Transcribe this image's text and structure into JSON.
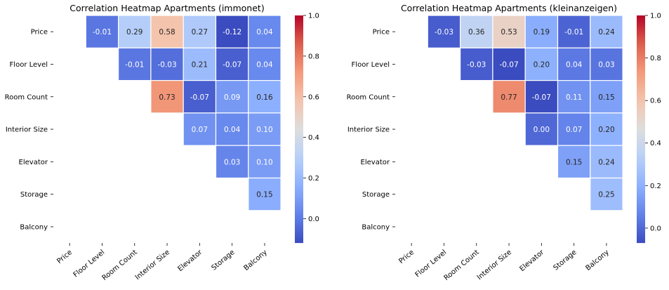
{
  "chart_data": [
    {
      "type": "heatmap",
      "title": "Correlation Heatmap Apartments (immonet)",
      "row_labels": [
        "Price",
        "Floor Level",
        "Room Count",
        "Interior Size",
        "Elevator",
        "Storage",
        "Balcony"
      ],
      "col_labels": [
        "Price",
        "Floor Level",
        "Room Count",
        "Interior Size",
        "Elevator",
        "Storage",
        "Balcony"
      ],
      "values": [
        [
          null,
          -0.01,
          0.29,
          0.58,
          0.27,
          -0.12,
          0.04
        ],
        [
          null,
          null,
          -0.01,
          -0.03,
          0.21,
          -0.07,
          0.04
        ],
        [
          null,
          null,
          null,
          0.73,
          -0.07,
          0.09,
          0.16
        ],
        [
          null,
          null,
          null,
          null,
          0.07,
          0.04,
          0.1
        ],
        [
          null,
          null,
          null,
          null,
          null,
          0.03,
          0.1
        ],
        [
          null,
          null,
          null,
          null,
          null,
          null,
          0.15
        ],
        [
          null,
          null,
          null,
          null,
          null,
          null,
          null
        ]
      ],
      "value_labels": [
        [
          "",
          "-0.01",
          "0.29",
          "0.58",
          "0.27",
          "-0.12",
          "0.04"
        ],
        [
          "",
          "",
          "-0.01",
          "-0.03",
          "0.21",
          "-0.07",
          "0.04"
        ],
        [
          "",
          "",
          "",
          "0.73",
          "-0.07",
          "0.09",
          "0.16"
        ],
        [
          "",
          "",
          "",
          "",
          "0.07",
          "0.04",
          "0.10"
        ],
        [
          "",
          "",
          "",
          "",
          "",
          "0.03",
          "0.10"
        ],
        [
          "",
          "",
          "",
          "",
          "",
          "",
          "0.15"
        ],
        [
          "",
          "",
          "",
          "",
          "",
          "",
          ""
        ]
      ],
      "colormap": "coolwarm",
      "colorbar": {
        "vmin": -0.12,
        "vmax": 1.0,
        "ticks": [
          0.0,
          0.2,
          0.4,
          0.6,
          0.8,
          1.0
        ],
        "tick_labels": [
          "0.0",
          "0.2",
          "0.4",
          "0.6",
          "0.8",
          "1.0"
        ]
      }
    },
    {
      "type": "heatmap",
      "title": "Correlation Heatmap Apartments (kleinanzeigen)",
      "row_labels": [
        "Price",
        "Floor Level",
        "Room Count",
        "Interior Size",
        "Elevator",
        "Storage",
        "Balcony"
      ],
      "col_labels": [
        "Price",
        "Floor Level",
        "Room Count",
        "Interior Size",
        "Elevator",
        "Storage",
        "Balcony"
      ],
      "values": [
        [
          null,
          -0.03,
          0.36,
          0.53,
          0.19,
          -0.01,
          0.24
        ],
        [
          null,
          null,
          -0.03,
          -0.07,
          0.2,
          0.04,
          0.03
        ],
        [
          null,
          null,
          null,
          0.77,
          -0.07,
          0.11,
          0.15
        ],
        [
          null,
          null,
          null,
          null,
          0.0,
          0.07,
          0.2
        ],
        [
          null,
          null,
          null,
          null,
          null,
          0.15,
          0.24
        ],
        [
          null,
          null,
          null,
          null,
          null,
          null,
          0.25
        ],
        [
          null,
          null,
          null,
          null,
          null,
          null,
          null
        ]
      ],
      "value_labels": [
        [
          "",
          "-0.03",
          "0.36",
          "0.53",
          "0.19",
          "-0.01",
          "0.24"
        ],
        [
          "",
          "",
          "-0.03",
          "-0.07",
          "0.20",
          "0.04",
          "0.03"
        ],
        [
          "",
          "",
          "",
          "0.77",
          "-0.07",
          "0.11",
          "0.15"
        ],
        [
          "",
          "",
          "",
          "",
          "0.00",
          "0.07",
          "0.20"
        ],
        [
          "",
          "",
          "",
          "",
          "",
          "0.15",
          "0.24"
        ],
        [
          "",
          "",
          "",
          "",
          "",
          "",
          "0.25"
        ],
        [
          "",
          "",
          "",
          "",
          "",
          "",
          ""
        ]
      ],
      "colormap": "coolwarm",
      "colorbar": {
        "vmin": -0.07,
        "vmax": 1.0,
        "ticks": [
          0.0,
          0.2,
          0.4,
          0.6,
          0.8,
          1.0
        ],
        "tick_labels": [
          "0.0",
          "0.2",
          "0.4",
          "0.6",
          "0.8",
          "1.0"
        ]
      }
    }
  ]
}
